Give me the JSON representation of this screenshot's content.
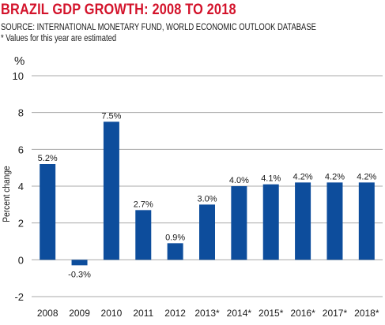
{
  "header": {
    "title": "BRAZIL GDP GROWTH: 2008 TO 2018",
    "source": "SOURCE: INTERNATIONAL MONETARY FUND, WORLD ECONOMIC OUTLOOK DATABASE",
    "note": "* Values for this year are estimated"
  },
  "colors": {
    "title": "#d3132b",
    "bar": "#0d4d9c",
    "grid": "#a8a8a8",
    "text": "#1a1a1a"
  },
  "chart_data": {
    "type": "bar",
    "title": "BRAZIL GDP GROWTH: 2008 TO 2018",
    "ylabel": "Percent change",
    "yunit": "%",
    "categories": [
      "2008",
      "2009",
      "2010",
      "2011",
      "2012",
      "2013*",
      "2014*",
      "2015*",
      "2016*",
      "2017*",
      "2018*"
    ],
    "values": [
      5.2,
      -0.3,
      7.5,
      2.7,
      0.9,
      3.0,
      4.0,
      4.1,
      4.2,
      4.2,
      4.2
    ],
    "data_labels": [
      "5.2%",
      "-0.3%",
      "7.5%",
      "2.7%",
      "0.9%",
      "3.0%",
      "4.0%",
      "4.1%",
      "4.2%",
      "4.2%",
      "4.2%"
    ],
    "ylim": [
      -2,
      10
    ],
    "yticks": [
      -2,
      0,
      2,
      4,
      6,
      8,
      10
    ],
    "grid": true
  }
}
